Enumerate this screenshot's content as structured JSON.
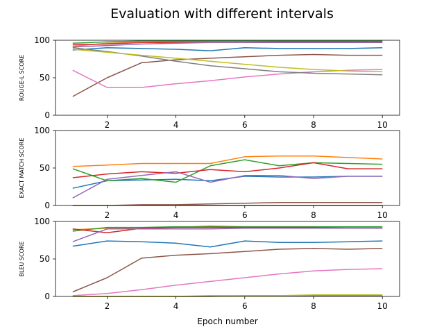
{
  "figure": {
    "title": "Evaluation with different intervals",
    "xlabel": "Epoch number"
  },
  "chart_data": [
    {
      "type": "line",
      "ylabel": "ROUGE-L SCORE",
      "xlim": [
        0.5,
        10.5
      ],
      "ylim": [
        0,
        100
      ],
      "xticks": [
        2,
        4,
        6,
        8,
        10
      ],
      "yticks": [
        0,
        50,
        100
      ],
      "grid": false,
      "x": [
        1,
        2,
        3,
        4,
        5,
        6,
        7,
        8,
        9,
        10
      ],
      "series": [
        {
          "color": "#1f77b4",
          "values": [
            87,
            90,
            89,
            88,
            86,
            90,
            89,
            89,
            89,
            90
          ]
        },
        {
          "color": "#ff7f0e",
          "values": [
            92,
            96,
            97,
            98,
            98,
            98,
            98,
            98,
            98,
            98
          ]
        },
        {
          "color": "#2ca02c",
          "values": [
            96,
            98,
            99,
            99,
            99,
            99,
            99,
            99,
            99,
            99
          ]
        },
        {
          "color": "#d62728",
          "values": [
            94,
            95,
            97,
            97,
            97,
            97,
            98,
            98,
            98,
            98
          ]
        },
        {
          "color": "#9467bd",
          "values": [
            91,
            93,
            95,
            96,
            97,
            97,
            97,
            97,
            97,
            97
          ]
        },
        {
          "color": "#8c564b",
          "values": [
            25,
            50,
            70,
            74,
            76,
            78,
            80,
            81,
            80,
            80
          ]
        },
        {
          "color": "#e377c2",
          "values": [
            60,
            37,
            37,
            42,
            46,
            51,
            55,
            58,
            60,
            61
          ]
        },
        {
          "color": "#7f7f7f",
          "values": [
            90,
            85,
            79,
            72,
            66,
            62,
            58,
            56,
            55,
            54
          ]
        },
        {
          "color": "#bcbd22",
          "values": [
            88,
            84,
            80,
            76,
            72,
            68,
            64,
            61,
            59,
            58
          ]
        }
      ]
    },
    {
      "type": "line",
      "ylabel": "EXACT MATCH SCORE",
      "xlim": [
        0.5,
        10.5
      ],
      "ylim": [
        0,
        100
      ],
      "xticks": [
        2,
        4,
        6,
        8,
        10
      ],
      "yticks": [
        0,
        50,
        100
      ],
      "grid": false,
      "x": [
        1,
        2,
        3,
        4,
        5,
        6,
        7,
        8,
        9,
        10
      ],
      "series": [
        {
          "color": "#1f77b4",
          "values": [
            23,
            33,
            34,
            35,
            33,
            39,
            38,
            38,
            39,
            39
          ]
        },
        {
          "color": "#ff7f0e",
          "values": [
            52,
            54,
            56,
            56,
            56,
            65,
            66,
            66,
            64,
            62
          ]
        },
        {
          "color": "#2ca02c",
          "values": [
            49,
            33,
            36,
            31,
            53,
            61,
            53,
            57,
            56,
            55
          ]
        },
        {
          "color": "#d62728",
          "values": [
            37,
            42,
            45,
            43,
            48,
            45,
            50,
            57,
            49,
            49
          ]
        },
        {
          "color": "#9467bd",
          "values": [
            10,
            35,
            40,
            45,
            31,
            40,
            40,
            36,
            39,
            39
          ]
        },
        {
          "color": "#8c564b",
          "values": [
            0,
            0,
            1,
            1,
            2,
            3,
            4,
            4,
            4,
            4
          ]
        },
        {
          "color": "#e377c2",
          "values": [
            0,
            0,
            0,
            0,
            0,
            0,
            0,
            0,
            0,
            0
          ]
        },
        {
          "color": "#7f7f7f",
          "values": [
            0,
            0,
            0,
            0,
            0,
            0,
            0,
            0,
            0,
            0
          ]
        },
        {
          "color": "#bcbd22",
          "values": [
            0,
            0,
            0,
            0,
            0,
            0,
            0,
            0,
            0,
            0
          ]
        }
      ]
    },
    {
      "type": "line",
      "ylabel": "BLEU SCORE",
      "xlim": [
        0.5,
        10.5
      ],
      "ylim": [
        0,
        100
      ],
      "xticks": [
        2,
        4,
        6,
        8,
        10
      ],
      "yticks": [
        0,
        50,
        100
      ],
      "grid": false,
      "x": [
        1,
        2,
        3,
        4,
        5,
        6,
        7,
        8,
        9,
        10
      ],
      "series": [
        {
          "color": "#1f77b4",
          "values": [
            67,
            74,
            73,
            71,
            66,
            74,
            72,
            72,
            73,
            74
          ]
        },
        {
          "color": "#ff7f0e",
          "values": [
            89,
            91,
            91,
            92,
            94,
            93,
            93,
            93,
            92,
            92
          ]
        },
        {
          "color": "#2ca02c",
          "values": [
            87,
            92,
            92,
            93,
            93,
            93,
            93,
            93,
            93,
            93
          ]
        },
        {
          "color": "#d62728",
          "values": [
            90,
            85,
            91,
            92,
            92,
            92,
            92,
            92,
            91,
            91
          ]
        },
        {
          "color": "#9467bd",
          "values": [
            73,
            90,
            90,
            90,
            90,
            91,
            91,
            91,
            91,
            91
          ]
        },
        {
          "color": "#8c564b",
          "values": [
            6,
            25,
            51,
            55,
            57,
            60,
            63,
            64,
            63,
            64
          ]
        },
        {
          "color": "#e377c2",
          "values": [
            1,
            4,
            9,
            15,
            20,
            25,
            30,
            34,
            36,
            37
          ]
        },
        {
          "color": "#7f7f7f",
          "values": [
            0,
            0,
            0,
            0,
            0,
            1,
            1,
            1,
            1,
            1
          ]
        },
        {
          "color": "#bcbd22",
          "values": [
            0,
            0,
            0,
            0,
            1,
            1,
            1,
            2,
            2,
            2
          ]
        }
      ]
    }
  ]
}
